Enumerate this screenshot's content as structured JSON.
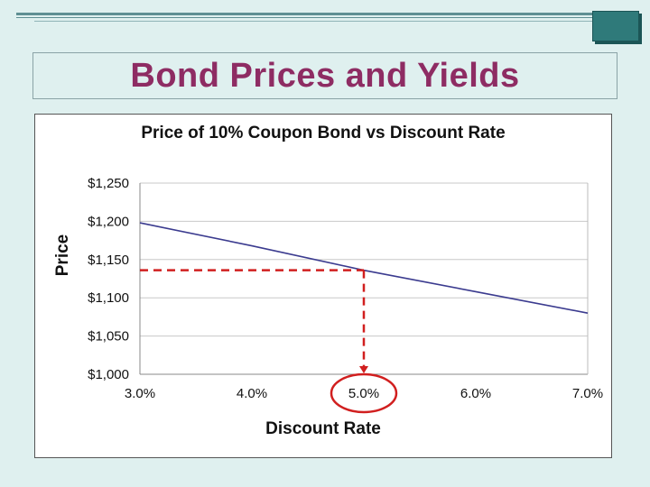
{
  "slide": {
    "title": "Bond Prices and Yields"
  },
  "colors": {
    "title": "#8e2c63",
    "background": "#dff0ef",
    "accent": "#2f7a7a",
    "series_line": "#3b3b8f",
    "highlight": "#d11f1f"
  },
  "chart_data": {
    "type": "line",
    "title": "Price of 10% Coupon Bond vs Discount Rate",
    "xlabel": "Discount Rate",
    "ylabel": "Price",
    "x_tick_labels": [
      "3.0%",
      "4.0%",
      "5.0%",
      "6.0%",
      "7.0%"
    ],
    "y_tick_labels": [
      "$1,000",
      "$1,050",
      "$1,100",
      "$1,150",
      "$1,200",
      "$1,250"
    ],
    "xlim": [
      3.0,
      7.0
    ],
    "ylim": [
      1000,
      1250
    ],
    "grid": "horizontal",
    "series": [
      {
        "x": [
          3.0,
          4.0,
          5.0,
          6.0,
          7.0
        ],
        "values": [
          1198,
          1168,
          1136,
          1108,
          1080
        ]
      }
    ],
    "highlight": {
      "x": 5.0,
      "y": 1136,
      "label": "5.0%"
    }
  }
}
